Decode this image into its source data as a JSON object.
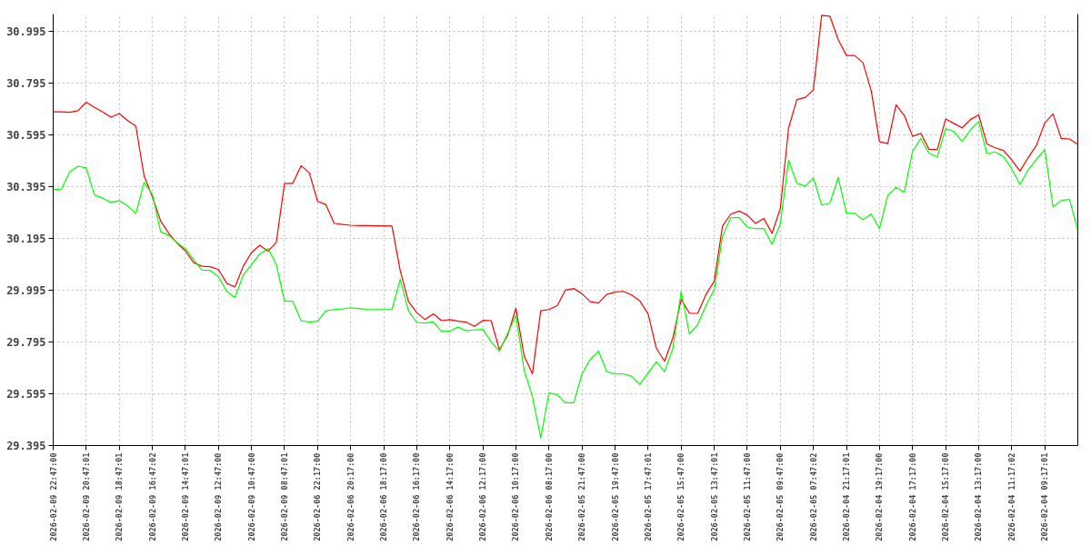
{
  "chart_data": {
    "type": "line",
    "categories": [
      "2026-02-09 22:47:00",
      null,
      null,
      null,
      "2026-02-09 20:47:01",
      null,
      null,
      null,
      "2026-02-09 18:47:01",
      null,
      null,
      null,
      "2026-02-09 16:47:02",
      null,
      null,
      null,
      "2026-02-09 14:47:01",
      null,
      null,
      null,
      "2026-02-09 12:47:00",
      null,
      null,
      null,
      "2026-02-09 10:47:00",
      null,
      null,
      null,
      "2026-02-09 08:47:01",
      null,
      null,
      null,
      "2026-02-06 22:17:00",
      null,
      null,
      null,
      "2026-02-06 20:17:00",
      null,
      null,
      null,
      "2026-02-06 18:17:00",
      null,
      null,
      null,
      "2026-02-06 16:17:00",
      null,
      null,
      null,
      "2026-02-06 14:17:00",
      null,
      null,
      null,
      "2026-02-06 12:17:00",
      null,
      null,
      null,
      "2026-02-06 10:17:00",
      null,
      null,
      null,
      "2026-02-06 08:17:00",
      null,
      null,
      null,
      "2026-02-05 21:47:00",
      null,
      null,
      null,
      "2026-02-05 19:47:00",
      null,
      null,
      null,
      "2026-02-05 17:47:01",
      null,
      null,
      null,
      "2026-02-05 15:47:00",
      null,
      null,
      null,
      "2026-02-05 13:47:01",
      null,
      null,
      null,
      "2026-02-05 11:47:00",
      null,
      null,
      null,
      "2026-02-05 09:47:00",
      null,
      null,
      null,
      "2026-02-05 07:47:02",
      null,
      null,
      null,
      "2026-02-04 21:17:01",
      null,
      null,
      null,
      "2026-02-04 19:17:00",
      null,
      null,
      null,
      "2026-02-04 17:17:00",
      null,
      null,
      null,
      "2026-02-04 15:17:00",
      null,
      null,
      null,
      "2026-02-04 13:17:00",
      null,
      null,
      null,
      "2026-02-04 11:17:02",
      null,
      null,
      null,
      "2026-02-04 09:17:01",
      null,
      null,
      null,
      null
    ],
    "ylim": [
      29.395,
      31.06
    ],
    "yticks": [
      29.395,
      29.595,
      29.795,
      29.995,
      30.195,
      30.395,
      30.595,
      30.795,
      30.995
    ],
    "grid": true,
    "marker": "none",
    "line_style": "solid",
    "series": [
      {
        "color": "#ff0000",
        "values": [
          30.683,
          30.683,
          30.681,
          30.687,
          30.72,
          30.7,
          30.682,
          30.662,
          30.676,
          30.649,
          30.628,
          30.436,
          30.355,
          30.262,
          30.213,
          30.176,
          30.146,
          30.101,
          30.087,
          30.085,
          30.074,
          30.021,
          30.007,
          30.087,
          30.14,
          30.168,
          30.145,
          30.18,
          30.407,
          30.407,
          30.475,
          30.447,
          30.337,
          30.325,
          30.253,
          30.248,
          30.245,
          30.244,
          30.244,
          30.243,
          30.243,
          30.242,
          30.07,
          29.95,
          29.908,
          29.881,
          29.903,
          29.877,
          29.881,
          29.875,
          29.871,
          29.855,
          29.878,
          29.877,
          29.765,
          29.82,
          29.925,
          29.74,
          29.672,
          29.915,
          29.92,
          29.935,
          29.995,
          30.001,
          29.981,
          29.95,
          29.945,
          29.978,
          29.987,
          29.99,
          29.976,
          29.953,
          29.903,
          29.77,
          29.72,
          29.811,
          29.96,
          29.905,
          29.905,
          29.978,
          30.029,
          30.242,
          30.288,
          30.3,
          30.284,
          30.252,
          30.271,
          30.214,
          30.31,
          30.62,
          30.73,
          30.738,
          30.767,
          31.055,
          31.052,
          30.962,
          30.9,
          30.9,
          30.872,
          30.764,
          30.568,
          30.56,
          30.71,
          30.669,
          30.588,
          30.6,
          30.538,
          30.537,
          30.655,
          30.638,
          30.621,
          30.653,
          30.671,
          30.559,
          30.544,
          30.534,
          30.497,
          30.454,
          30.506,
          30.554,
          30.64,
          30.675,
          30.58,
          30.578,
          30.557
        ]
      },
      {
        "color": "#00ff00",
        "values": [
          30.382,
          30.385,
          30.45,
          30.473,
          30.466,
          30.362,
          30.349,
          30.333,
          30.34,
          30.32,
          30.29,
          30.41,
          30.365,
          30.22,
          30.206,
          30.178,
          30.155,
          30.112,
          30.072,
          30.071,
          30.047,
          29.99,
          29.966,
          30.053,
          30.093,
          30.134,
          30.156,
          30.094,
          29.952,
          29.952,
          29.876,
          29.872,
          29.875,
          29.915,
          29.92,
          29.922,
          29.927,
          29.924,
          29.92,
          29.92,
          29.92,
          29.92,
          30.037,
          29.914,
          29.87,
          29.868,
          29.872,
          29.835,
          29.836,
          29.852,
          29.838,
          29.842,
          29.843,
          29.795,
          29.759,
          29.827,
          29.897,
          29.685,
          29.584,
          29.425,
          29.598,
          29.592,
          29.56,
          29.56,
          29.672,
          29.728,
          29.759,
          29.68,
          29.671,
          29.672,
          29.662,
          29.631,
          29.675,
          29.718,
          29.681,
          29.77,
          29.99,
          29.825,
          29.862,
          29.936,
          29.996,
          30.202,
          30.274,
          30.275,
          30.238,
          30.232,
          30.232,
          30.172,
          30.251,
          30.496,
          30.407,
          30.396,
          30.428,
          30.323,
          30.33,
          30.43,
          30.291,
          30.291,
          30.267,
          30.288,
          30.232,
          30.36,
          30.391,
          30.372,
          30.53,
          30.58,
          30.522,
          30.509,
          30.618,
          30.607,
          30.568,
          30.613,
          30.646,
          30.521,
          30.528,
          30.51,
          30.463,
          30.403,
          30.459,
          30.5,
          30.537,
          30.316,
          30.341,
          30.345,
          30.225
        ]
      }
    ]
  }
}
